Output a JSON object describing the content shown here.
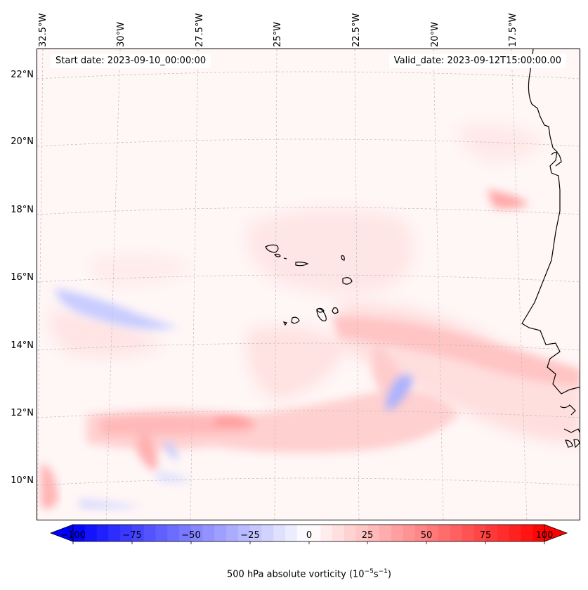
{
  "longitude_labels": [
    "32.5°W",
    "30°W",
    "27.5°W",
    "25°W",
    "22.5°W",
    "20°W",
    "17.5°W"
  ],
  "latitude_labels": [
    "22°N",
    "20°N",
    "18°N",
    "16°N",
    "14°N",
    "12°N",
    "10°N"
  ],
  "start_date": "Start date: 2023-09-10_00:00:00",
  "valid_date": "Valid_date: 2023-09-12T15:00:00.00",
  "colorbar": {
    "ticks": [
      "−100",
      "−75",
      "−50",
      "−25",
      "0",
      "25",
      "50",
      "75",
      "100"
    ],
    "label_main": "500 hPa absolute vorticity (10",
    "label_exp1": "−5",
    "label_mid": "s",
    "label_exp2": "−1",
    "label_end": ")",
    "min": -100,
    "max": 100,
    "colors": {
      "negative_end": "#0000ff",
      "zero": "#ffffff",
      "positive_end": "#ff0000"
    }
  },
  "colors": {
    "background_field": "#fff6f6",
    "coastline": "#000000",
    "gridline": "#bbbbbb"
  }
}
